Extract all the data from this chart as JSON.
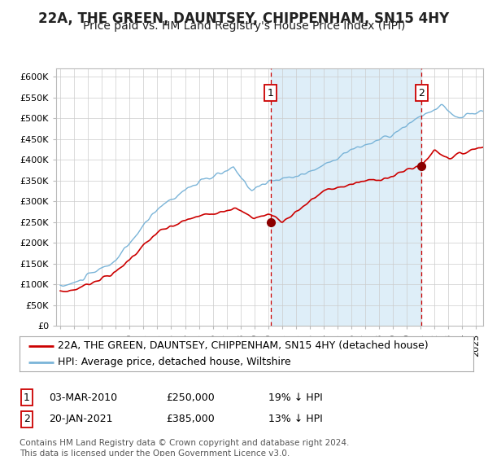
{
  "title": "22A, THE GREEN, DAUNTSEY, CHIPPENHAM, SN15 4HY",
  "subtitle": "Price paid vs. HM Land Registry's House Price Index (HPI)",
  "legend_line1": "22A, THE GREEN, DAUNTSEY, CHIPPENHAM, SN15 4HY (detached house)",
  "legend_line2": "HPI: Average price, detached house, Wiltshire",
  "annotation1_label": "1",
  "annotation1_date": "03-MAR-2010",
  "annotation1_price": "£250,000",
  "annotation1_hpi": "19% ↓ HPI",
  "annotation2_label": "2",
  "annotation2_date": "20-JAN-2021",
  "annotation2_price": "£385,000",
  "annotation2_hpi": "13% ↓ HPI",
  "footer": "Contains HM Land Registry data © Crown copyright and database right 2024.\nThis data is licensed under the Open Government Licence v3.0.",
  "sale1_year": 2010.17,
  "sale1_value": 250000,
  "sale2_year": 2021.05,
  "sale2_value": 385000,
  "hpi_color": "#7ab4d8",
  "price_color": "#cc0000",
  "dot_color": "#8b0000",
  "vline_color": "#cc0000",
  "shade_color": "#deeef8",
  "plot_bg": "#ffffff",
  "fig_bg": "#ffffff",
  "ylim": [
    0,
    620000
  ],
  "xlim_min": 1994.7,
  "xlim_max": 2025.5,
  "ytick_step": 50000,
  "title_fontsize": 12,
  "subtitle_fontsize": 10,
  "tick_fontsize": 8,
  "legend_fontsize": 9,
  "ann_fontsize": 9,
  "footer_fontsize": 7.5
}
